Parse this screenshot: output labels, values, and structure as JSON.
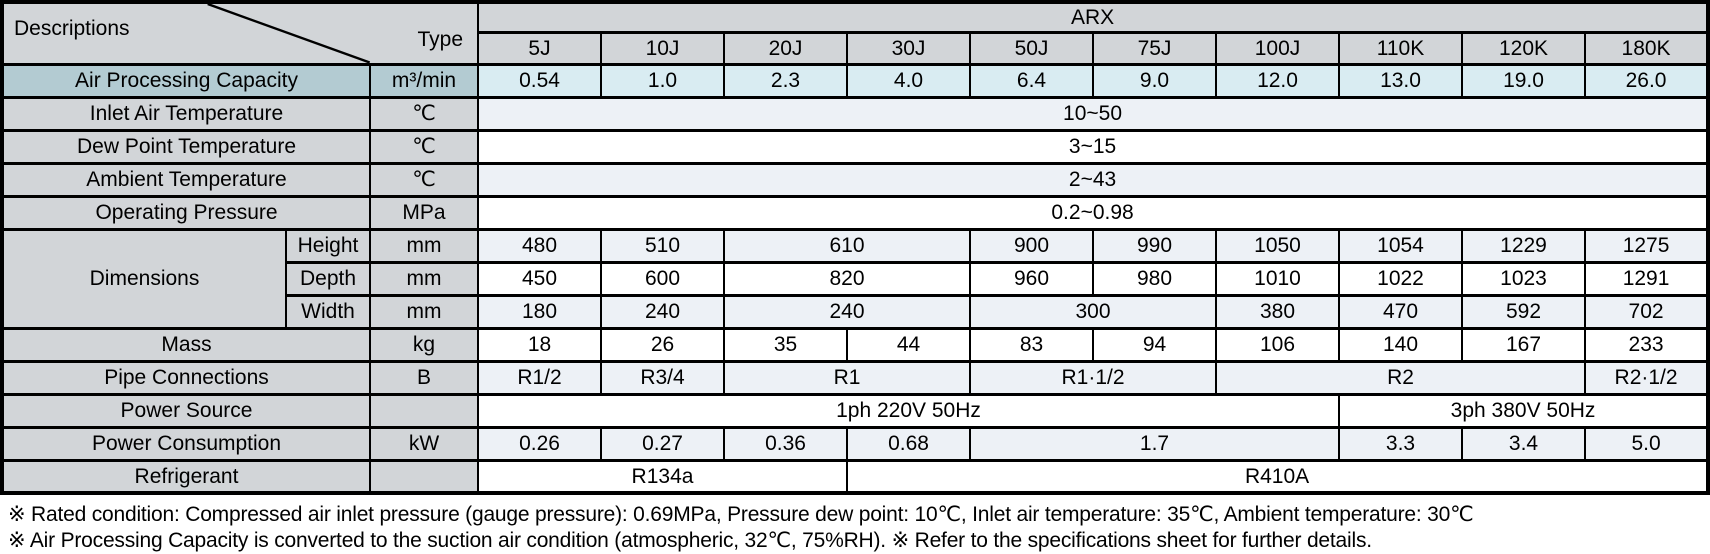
{
  "table": {
    "corner": {
      "descriptions": "Descriptions",
      "type": "Type"
    },
    "series": "ARX",
    "models": [
      "5J",
      "10J",
      "20J",
      "30J",
      "50J",
      "75J",
      "100J",
      "110K",
      "120K",
      "180K"
    ],
    "rows": [
      {
        "label": "Air Processing Capacity",
        "unit": "m³/min",
        "highlight": true,
        "shade": "cyan",
        "cells": [
          [
            "0.54",
            1
          ],
          [
            "1.0",
            1
          ],
          [
            "2.3",
            1
          ],
          [
            "4.0",
            1
          ],
          [
            "6.4",
            1
          ],
          [
            "9.0",
            1
          ],
          [
            "12.0",
            1
          ],
          [
            "13.0",
            1
          ],
          [
            "19.0",
            1
          ],
          [
            "26.0",
            1
          ]
        ]
      },
      {
        "label": "Inlet Air Temperature",
        "unit": "℃",
        "shade": "light",
        "cells": [
          [
            "10~50",
            10
          ]
        ]
      },
      {
        "label": "Dew Point Temperature",
        "unit": "℃",
        "shade": "white",
        "cells": [
          [
            "3~15",
            10
          ]
        ]
      },
      {
        "label": "Ambient Temperature",
        "unit": "℃",
        "shade": "light",
        "cells": [
          [
            "2~43",
            10
          ]
        ]
      },
      {
        "label": "Operating Pressure",
        "unit": "MPa",
        "shade": "white",
        "cells": [
          [
            "0.2~0.98",
            10
          ]
        ]
      },
      {
        "group": "Dimensions",
        "group_rowspan": 3,
        "sublabel": "Height",
        "unit": "mm",
        "shade": "light",
        "cells": [
          [
            "480",
            1
          ],
          [
            "510",
            1
          ],
          [
            "610",
            2
          ],
          [
            "900",
            1
          ],
          [
            "990",
            1
          ],
          [
            "1050",
            1
          ],
          [
            "1054",
            1
          ],
          [
            "1229",
            1
          ],
          [
            "1275",
            1
          ]
        ]
      },
      {
        "sublabel": "Depth",
        "unit": "mm",
        "shade": "white",
        "cells": [
          [
            "450",
            1
          ],
          [
            "600",
            1
          ],
          [
            "820",
            2
          ],
          [
            "960",
            1
          ],
          [
            "980",
            1
          ],
          [
            "1010",
            1
          ],
          [
            "1022",
            1
          ],
          [
            "1023",
            1
          ],
          [
            "1291",
            1
          ]
        ]
      },
      {
        "sublabel": "Width",
        "unit": "mm",
        "shade": "light",
        "cells": [
          [
            "180",
            1
          ],
          [
            "240",
            1
          ],
          [
            "240",
            2
          ],
          [
            "300",
            2
          ],
          [
            "380",
            1
          ],
          [
            "470",
            1
          ],
          [
            "592",
            1
          ],
          [
            "702",
            1
          ]
        ]
      },
      {
        "label": "Mass",
        "unit": "kg",
        "shade": "white",
        "cells": [
          [
            "18",
            1
          ],
          [
            "26",
            1
          ],
          [
            "35",
            1
          ],
          [
            "44",
            1
          ],
          [
            "83",
            1
          ],
          [
            "94",
            1
          ],
          [
            "106",
            1
          ],
          [
            "140",
            1
          ],
          [
            "167",
            1
          ],
          [
            "233",
            1
          ]
        ]
      },
      {
        "label": "Pipe Connections",
        "unit": "B",
        "shade": "light",
        "cells": [
          [
            "R1/2",
            1
          ],
          [
            "R3/4",
            1
          ],
          [
            "R1",
            2
          ],
          [
            "R1·1/2",
            2
          ],
          [
            "R2",
            3
          ],
          [
            "R2·1/2",
            1
          ]
        ]
      },
      {
        "label": "Power Source",
        "unit": "",
        "shade": "white",
        "cells": [
          [
            "1ph 220V 50Hz",
            7
          ],
          [
            "3ph 380V 50Hz",
            3
          ]
        ]
      },
      {
        "label": "Power Consumption",
        "unit": "kW",
        "shade": "light",
        "cells": [
          [
            "0.26",
            1
          ],
          [
            "0.27",
            1
          ],
          [
            "0.36",
            1
          ],
          [
            "0.68",
            1
          ],
          [
            "1.7",
            3
          ],
          [
            "3.3",
            1
          ],
          [
            "3.4",
            1
          ],
          [
            "5.0",
            1
          ]
        ]
      },
      {
        "label": "Refrigerant",
        "unit": "",
        "shade": "white",
        "cells": [
          [
            "R134a",
            3
          ],
          [
            "R410A",
            7
          ]
        ]
      }
    ]
  },
  "notes": [
    "※ Rated condition: Compressed air inlet pressure (gauge pressure): 0.69MPa, Pressure dew point: 10℃,  Inlet air temperature: 35℃, Ambient temperature: 30℃",
    "※ Air Processing Capacity is converted to the suction air condition (atmospheric, 32℃, 75%RH).    ※ Refer to the specifications sheet for further details."
  ],
  "colors": {
    "border": "#000000",
    "label_bg": "#d2d5d8",
    "highlight_label_bg": "#b3cbd2",
    "highlight_value_bg": "#d9ecf2",
    "row_light_bg": "#edf1f6",
    "row_white_bg": "#ffffff"
  }
}
